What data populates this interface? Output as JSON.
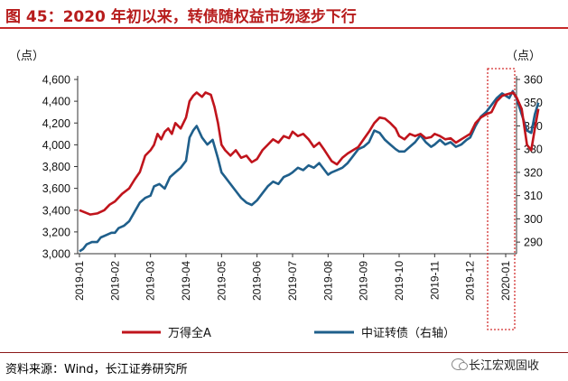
{
  "header": {
    "title": "图 45：2020 年初以来，转债随权益市场逐步下行"
  },
  "footer": {
    "source": "资料来源：Wind，长江证券研究所",
    "brand": "长江宏观固收"
  },
  "chart_data": {
    "type": "line",
    "left_unit": "（点）",
    "right_unit": "（点）",
    "x": [
      "2019-01",
      "2019-02",
      "2019-03",
      "2019-04",
      "2019-05",
      "2019-06",
      "2019-07",
      "2019-08",
      "2019-09",
      "2019-10",
      "2019-11",
      "2019-12",
      "2020-01"
    ],
    "ylim_left": [
      3000,
      4600
    ],
    "ylim_right": [
      285,
      360
    ],
    "yticks_left": [
      "3,000",
      "3,200",
      "3,400",
      "3,600",
      "3,800",
      "4,000",
      "4,200",
      "4,400",
      "4,600"
    ],
    "yticks_right": [
      "290",
      "300",
      "310",
      "320",
      "330",
      "340",
      "350",
      "360"
    ],
    "grid": false,
    "legend_position": "bottom",
    "highlight_box": "2020-01",
    "series": [
      {
        "name": "万得全A",
        "axis": "left",
        "color": "#c0141c",
        "points": [
          [
            0.0,
            3400
          ],
          [
            0.15,
            3380
          ],
          [
            0.3,
            3360
          ],
          [
            0.5,
            3370
          ],
          [
            0.7,
            3400
          ],
          [
            0.85,
            3450
          ],
          [
            1.0,
            3480
          ],
          [
            1.2,
            3550
          ],
          [
            1.4,
            3600
          ],
          [
            1.55,
            3680
          ],
          [
            1.7,
            3750
          ],
          [
            1.85,
            3900
          ],
          [
            2.0,
            3950
          ],
          [
            2.1,
            4000
          ],
          [
            2.2,
            4100
          ],
          [
            2.3,
            4050
          ],
          [
            2.4,
            4120
          ],
          [
            2.5,
            4150
          ],
          [
            2.6,
            4100
          ],
          [
            2.7,
            4200
          ],
          [
            2.85,
            4150
          ],
          [
            3.0,
            4250
          ],
          [
            3.1,
            4400
          ],
          [
            3.2,
            4450
          ],
          [
            3.3,
            4480
          ],
          [
            3.45,
            4440
          ],
          [
            3.55,
            4480
          ],
          [
            3.7,
            4460
          ],
          [
            3.8,
            4350
          ],
          [
            3.9,
            4200
          ],
          [
            4.0,
            4000
          ],
          [
            4.1,
            3950
          ],
          [
            4.25,
            3900
          ],
          [
            4.4,
            3950
          ],
          [
            4.55,
            3880
          ],
          [
            4.7,
            3900
          ],
          [
            4.85,
            3840
          ],
          [
            5.0,
            3870
          ],
          [
            5.15,
            3950
          ],
          [
            5.3,
            4000
          ],
          [
            5.45,
            4050
          ],
          [
            5.6,
            4020
          ],
          [
            5.75,
            4080
          ],
          [
            5.9,
            4060
          ],
          [
            6.0,
            4120
          ],
          [
            6.15,
            4080
          ],
          [
            6.3,
            4100
          ],
          [
            6.45,
            4050
          ],
          [
            6.6,
            3980
          ],
          [
            6.75,
            4020
          ],
          [
            6.9,
            3950
          ],
          [
            7.0,
            3900
          ],
          [
            7.1,
            3850
          ],
          [
            7.25,
            3820
          ],
          [
            7.4,
            3880
          ],
          [
            7.55,
            3920
          ],
          [
            7.7,
            3950
          ],
          [
            7.85,
            3980
          ],
          [
            8.0,
            4050
          ],
          [
            8.15,
            4120
          ],
          [
            8.3,
            4200
          ],
          [
            8.45,
            4250
          ],
          [
            8.6,
            4240
          ],
          [
            8.75,
            4200
          ],
          [
            8.9,
            4150
          ],
          [
            9.0,
            4080
          ],
          [
            9.15,
            4050
          ],
          [
            9.3,
            4100
          ],
          [
            9.45,
            4080
          ],
          [
            9.6,
            4100
          ],
          [
            9.75,
            4060
          ],
          [
            9.9,
            4070
          ],
          [
            10.0,
            4100
          ],
          [
            10.15,
            4080
          ],
          [
            10.3,
            4050
          ],
          [
            10.45,
            4060
          ],
          [
            10.6,
            4020
          ],
          [
            10.75,
            4050
          ],
          [
            10.9,
            4080
          ],
          [
            11.0,
            4100
          ],
          [
            11.15,
            4200
          ],
          [
            11.3,
            4250
          ],
          [
            11.45,
            4280
          ],
          [
            11.6,
            4300
          ],
          [
            11.75,
            4400
          ],
          [
            11.9,
            4450
          ],
          [
            12.0,
            4460
          ],
          [
            12.1,
            4470
          ],
          [
            12.2,
            4480
          ],
          [
            12.3,
            4440
          ],
          [
            12.45,
            4330
          ],
          [
            12.6,
            4000
          ],
          [
            12.72,
            3950
          ],
          [
            12.82,
            4150
          ],
          [
            12.92,
            4330
          ]
        ]
      },
      {
        "name": "中证转债（右轴）",
        "axis": "right",
        "color": "#1f5f8b",
        "points": [
          [
            0.0,
            286
          ],
          [
            0.1,
            287
          ],
          [
            0.2,
            289
          ],
          [
            0.35,
            290
          ],
          [
            0.5,
            290
          ],
          [
            0.6,
            292
          ],
          [
            0.75,
            293
          ],
          [
            0.9,
            294
          ],
          [
            1.0,
            294
          ],
          [
            1.1,
            296
          ],
          [
            1.25,
            297
          ],
          [
            1.4,
            299
          ],
          [
            1.55,
            303
          ],
          [
            1.7,
            307
          ],
          [
            1.85,
            309
          ],
          [
            2.0,
            310
          ],
          [
            2.1,
            314
          ],
          [
            2.25,
            315
          ],
          [
            2.4,
            313
          ],
          [
            2.55,
            318
          ],
          [
            2.7,
            320
          ],
          [
            2.85,
            322
          ],
          [
            3.0,
            325
          ],
          [
            3.1,
            335
          ],
          [
            3.2,
            338
          ],
          [
            3.3,
            340
          ],
          [
            3.45,
            335
          ],
          [
            3.6,
            332
          ],
          [
            3.75,
            334
          ],
          [
            3.9,
            326
          ],
          [
            4.0,
            320
          ],
          [
            4.1,
            318
          ],
          [
            4.25,
            315
          ],
          [
            4.4,
            312
          ],
          [
            4.55,
            309
          ],
          [
            4.7,
            307
          ],
          [
            4.85,
            306
          ],
          [
            5.0,
            308
          ],
          [
            5.15,
            311
          ],
          [
            5.3,
            314
          ],
          [
            5.45,
            316
          ],
          [
            5.6,
            315
          ],
          [
            5.75,
            318
          ],
          [
            5.9,
            319
          ],
          [
            6.0,
            320
          ],
          [
            6.15,
            322
          ],
          [
            6.3,
            321
          ],
          [
            6.45,
            323
          ],
          [
            6.6,
            322
          ],
          [
            6.75,
            324
          ],
          [
            6.9,
            321
          ],
          [
            7.0,
            319
          ],
          [
            7.1,
            320
          ],
          [
            7.25,
            321
          ],
          [
            7.4,
            322
          ],
          [
            7.55,
            324
          ],
          [
            7.7,
            327
          ],
          [
            7.85,
            330
          ],
          [
            8.0,
            331
          ],
          [
            8.15,
            333
          ],
          [
            8.3,
            338
          ],
          [
            8.45,
            337
          ],
          [
            8.6,
            334
          ],
          [
            8.75,
            332
          ],
          [
            8.9,
            330
          ],
          [
            9.0,
            329
          ],
          [
            9.15,
            329
          ],
          [
            9.3,
            331
          ],
          [
            9.45,
            333
          ],
          [
            9.6,
            336
          ],
          [
            9.75,
            333
          ],
          [
            9.9,
            331
          ],
          [
            10.0,
            332
          ],
          [
            10.15,
            334
          ],
          [
            10.3,
            332
          ],
          [
            10.45,
            333
          ],
          [
            10.6,
            331
          ],
          [
            10.75,
            332
          ],
          [
            10.9,
            334
          ],
          [
            11.0,
            335
          ],
          [
            11.15,
            340
          ],
          [
            11.3,
            344
          ],
          [
            11.45,
            346
          ],
          [
            11.6,
            349
          ],
          [
            11.75,
            352
          ],
          [
            11.9,
            354
          ],
          [
            12.0,
            353
          ],
          [
            12.1,
            352
          ],
          [
            12.2,
            355
          ],
          [
            12.3,
            352
          ],
          [
            12.45,
            345
          ],
          [
            12.6,
            338
          ],
          [
            12.72,
            337
          ],
          [
            12.82,
            345
          ],
          [
            12.92,
            350
          ]
        ]
      }
    ]
  }
}
